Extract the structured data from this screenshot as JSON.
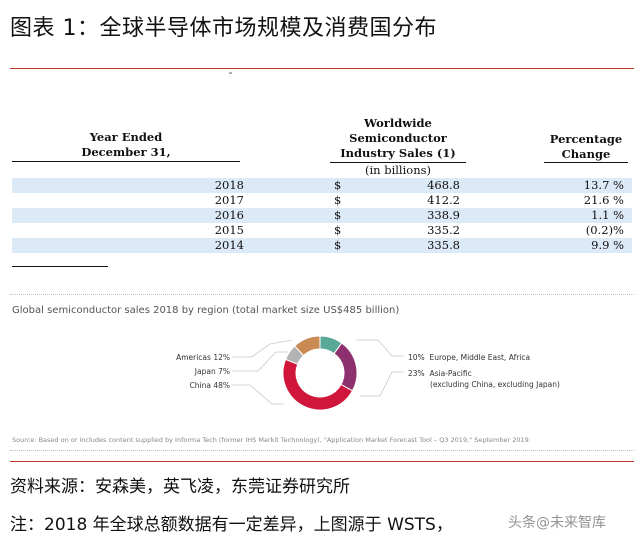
{
  "figure_title": "图表 1：全球半导体市场规模及消费国分布",
  "tiny_mark": "ˇ",
  "sales_table": {
    "header_year": [
      "Year Ended",
      "December 31,"
    ],
    "header_sales": [
      "Worldwide",
      "Semiconductor",
      "Industry Sales (1)"
    ],
    "header_unit": "(in billions)",
    "header_pct": [
      "Percentage",
      "Change"
    ],
    "rows": [
      {
        "year": "2018",
        "currency": "$",
        "sales": "468.8",
        "change": "13.7 %"
      },
      {
        "year": "2017",
        "currency": "$",
        "sales": "412.2",
        "change": "21.6 %"
      },
      {
        "year": "2016",
        "currency": "$",
        "sales": "338.9",
        "change": "1.1 %"
      },
      {
        "year": "2015",
        "currency": "$",
        "sales": "335.2",
        "change": "(0.2)%"
      },
      {
        "year": "2014",
        "currency": "$",
        "sales": "335.8",
        "change": "9.9 %"
      }
    ]
  },
  "chart_data": [
    {
      "type": "table",
      "columns": [
        "Year Ended December 31,",
        "Worldwide Semiconductor Industry Sales (1) (in billions)",
        "Percentage Change"
      ],
      "rows": [
        [
          "2018",
          468.8,
          "13.7 %"
        ],
        [
          "2017",
          412.2,
          "21.6 %"
        ],
        [
          "2016",
          338.9,
          "1.1 %"
        ],
        [
          "2015",
          335.2,
          "(0.2)%"
        ],
        [
          "2014",
          335.8,
          "9.9 %"
        ]
      ]
    },
    {
      "type": "pie",
      "title": "Global semiconductor sales 2018 by region (total market size US$485 billion)",
      "donut": true,
      "slices": [
        {
          "label": "Europe, Middle East, Africa",
          "value": 10,
          "pct_label": "10%",
          "color": "#5aa897"
        },
        {
          "label": "Asia-Pacific (excluding China, excluding Japan)",
          "value": 23,
          "pct_label": "23%",
          "color": "#8e2f6e"
        },
        {
          "label": "China",
          "value": 48,
          "pct_label": "48%",
          "color": "#d0163a"
        },
        {
          "label": "Japan",
          "value": 7,
          "pct_label": "7%",
          "color": "#b3b3b3"
        },
        {
          "label": "Americas",
          "value": 12,
          "pct_label": "12%",
          "color": "#c98a54"
        }
      ],
      "labels_left": [
        {
          "name": "Americas",
          "pct": "12%"
        },
        {
          "name": "Japan",
          "pct": "7%"
        },
        {
          "name": "China",
          "pct": "48%"
        }
      ],
      "labels_right": [
        {
          "pct": "10%",
          "lines": [
            "Europe, Middle East, Africa"
          ]
        },
        {
          "pct": "23%",
          "lines": [
            "Asia-Pacific",
            "(excluding China, excluding Japan)"
          ]
        }
      ],
      "source": "Source: Based on or includes content supplied by Informa Tech (former IHS Markit Technology), \"Application Market Forecast Tool – Q3 2019,\" September 2019."
    }
  ],
  "footer": {
    "source_line": "资料来源：安森美，英飞凌，东莞证券研究所",
    "note_line": "注：2018 年全球总额数据有一定差异，上图源于 WSTS，"
  },
  "watermark": "头条@未来智库"
}
